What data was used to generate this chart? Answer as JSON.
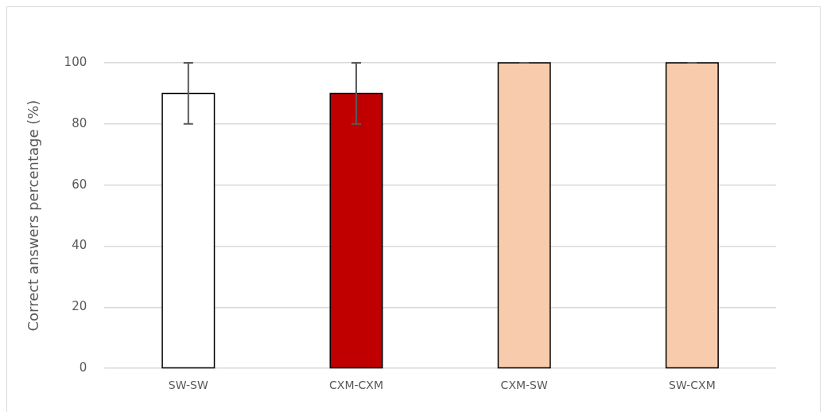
{
  "chart_data": {
    "type": "bar",
    "ylabel": "Correct answers percentage (%)",
    "categories": [
      "SW-SW",
      "CXM-CXM",
      "CXM-SW",
      "SW-CXM"
    ],
    "values": [
      90,
      90,
      100,
      100
    ],
    "colors": [
      "#ffffff",
      "#c00000",
      "#f8cbad",
      "#f8cbad"
    ],
    "errors": [
      10,
      10,
      0,
      0
    ],
    "ylim": [
      0,
      100
    ],
    "yticks": [
      0,
      20,
      40,
      60,
      80,
      100
    ],
    "grid": "y",
    "legend": false
  }
}
